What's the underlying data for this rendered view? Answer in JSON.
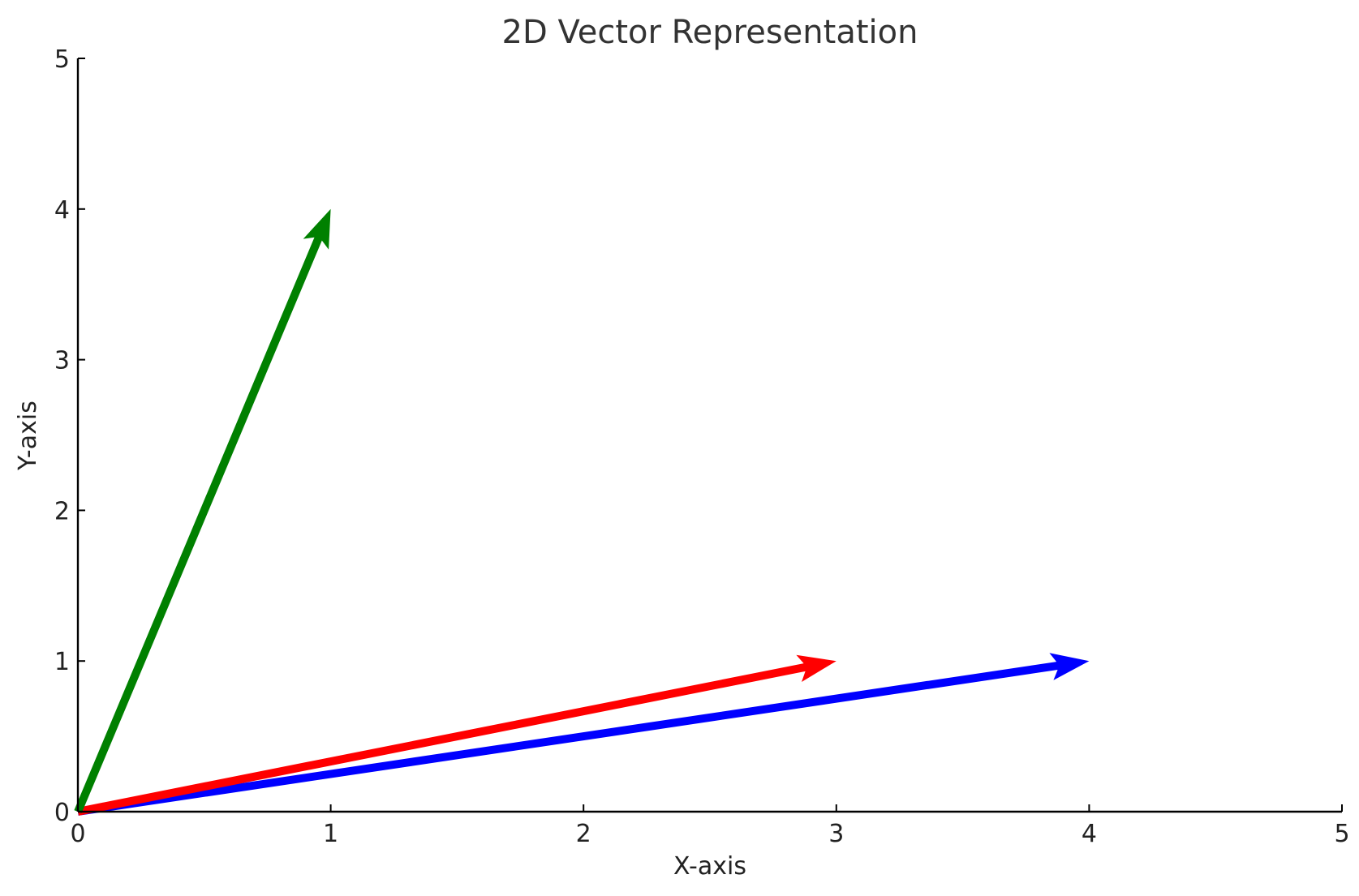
{
  "chart_data": {
    "type": "quiver",
    "title": "2D Vector Representation",
    "xlabel": "X-axis",
    "ylabel": "Y-axis",
    "xlim": [
      0,
      5
    ],
    "ylim": [
      0,
      5
    ],
    "xticks": [
      "0",
      "1",
      "2",
      "3",
      "4",
      "5"
    ],
    "yticks": [
      "0",
      "1",
      "2",
      "3",
      "4",
      "5"
    ],
    "grid": false,
    "vectors": [
      {
        "origin": [
          0,
          0
        ],
        "end": [
          4,
          1
        ],
        "color": "#0000ff"
      },
      {
        "origin": [
          0,
          0
        ],
        "end": [
          3,
          1
        ],
        "color": "#ff0000"
      },
      {
        "origin": [
          0,
          0
        ],
        "end": [
          1,
          4
        ],
        "color": "#008000"
      }
    ]
  }
}
